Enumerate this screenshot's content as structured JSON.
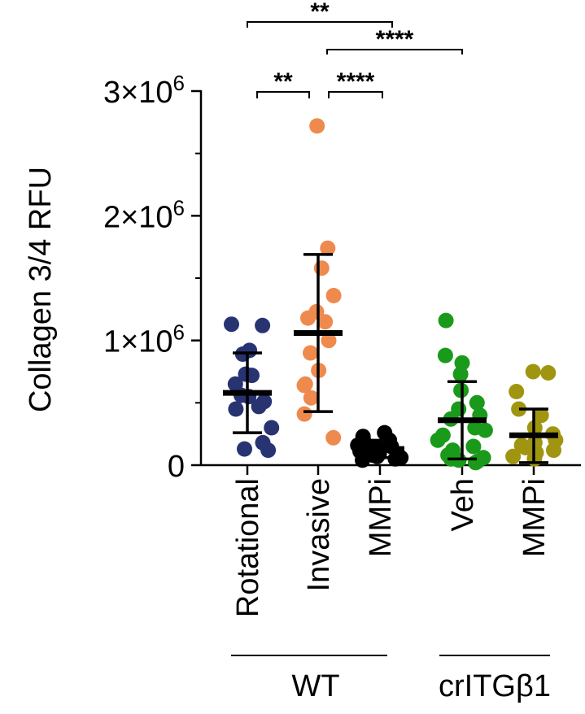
{
  "chart_data": {
    "type": "scatter",
    "ylabel": "Collagen 3/4 RFU",
    "ylim": [
      0,
      3000000
    ],
    "yticks": [
      {
        "value": 0,
        "base": "0",
        "exp": ""
      },
      {
        "value": 1000000,
        "base": "1×10",
        "exp": "6"
      },
      {
        "value": 2000000,
        "base": "2×10",
        "exp": "6"
      },
      {
        "value": 3000000,
        "base": "3×10",
        "exp": "6"
      }
    ],
    "categories": [
      "Rotational",
      "Invasive",
      "MMPi",
      "Veh",
      "MMPi"
    ],
    "colors": [
      "#283371",
      "#ee8a4e",
      "#000000",
      "#1a9a1a",
      "#a09510"
    ],
    "series": [
      {
        "label": "Rotational",
        "mean": 580000,
        "sd_low": 260000,
        "sd_high": 900000,
        "values": [
          1120000,
          1130000,
          920000,
          890000,
          730000,
          720000,
          650000,
          560000,
          550000,
          510000,
          470000,
          450000,
          300000,
          180000,
          130000,
          120000
        ]
      },
      {
        "label": "Invasive",
        "mean": 1060000,
        "sd_low": 430000,
        "sd_high": 1690000,
        "values": [
          2720000,
          1740000,
          1580000,
          1360000,
          1230000,
          1180000,
          1150000,
          1000000,
          900000,
          760000,
          650000,
          640000,
          540000,
          410000,
          220000
        ]
      },
      {
        "label": "MMPi",
        "mean": 130000,
        "sd_low": 60000,
        "sd_high": 200000,
        "values": [
          260000,
          230000,
          200000,
          180000,
          160000,
          150000,
          140000,
          130000,
          120000,
          110000,
          100000,
          90000,
          80000,
          70000,
          60000,
          50000,
          40000
        ]
      },
      {
        "label": "Veh",
        "mean": 360000,
        "sd_low": 50000,
        "sd_high": 670000,
        "values": [
          1160000,
          880000,
          820000,
          730000,
          600000,
          500000,
          450000,
          400000,
          370000,
          300000,
          280000,
          240000,
          200000,
          150000,
          120000,
          80000,
          60000,
          50000,
          40000,
          30000,
          20000
        ]
      },
      {
        "label": "MMPi",
        "mean": 240000,
        "sd_low": 20000,
        "sd_high": 450000,
        "values": [
          750000,
          740000,
          590000,
          450000,
          400000,
          300000,
          250000,
          200000,
          180000,
          160000,
          140000,
          120000,
          100000,
          70000,
          50000
        ]
      }
    ],
    "groups": [
      {
        "label": "WT",
        "from": 0,
        "to": 2
      },
      {
        "label": "crITGβ1",
        "from": 3,
        "to": 4
      }
    ],
    "significance": [
      {
        "from": 0,
        "to": 1,
        "label": "**",
        "level": 0
      },
      {
        "from": 1,
        "to": 2,
        "label": "****",
        "level": 0
      },
      {
        "from": 1,
        "to": 3,
        "label": "****",
        "level": 1
      },
      {
        "from": 0,
        "to": 2,
        "label": "**",
        "level": 2
      }
    ]
  }
}
